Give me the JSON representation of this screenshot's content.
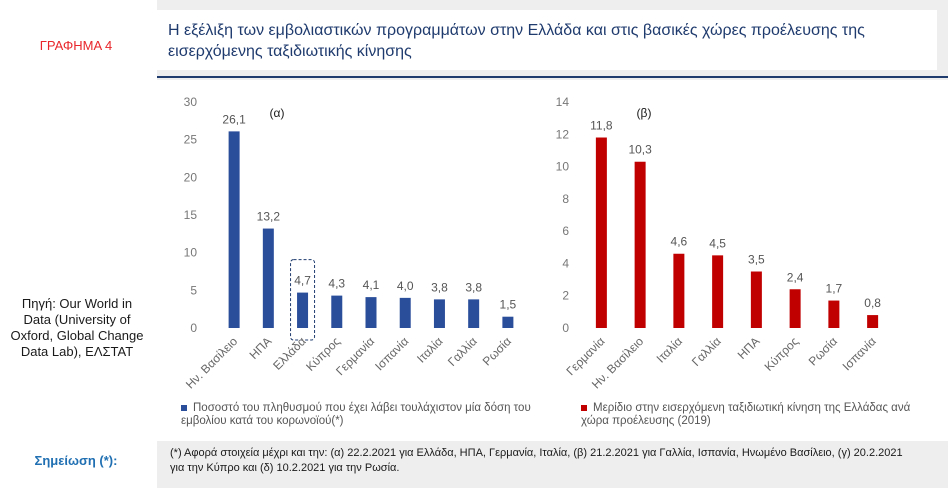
{
  "figure_label": "ΓΡΑΦΗΜΑ 4",
  "title": "Η εξέλιξη των εμβολιαστικών προγραμμάτων στην Ελλάδα και στις βασικές χώρες προέλευσης της εισερχόμενης ταξιδιωτικής κίνησης",
  "source": "Πηγή: Our World in Data (University of Oxford, Global Change Data Lab), ΕΛΣΤΑΤ",
  "note_label": "Σημείωση (*):",
  "note_text": "(*) Αφορά στοιχεία μέχρι και την: (α) 22.2.2021 για Ελλάδα, ΗΠΑ, Γερμανία, Ιταλία, (β) 21.2.2021 για Γαλλία, Ισπανία, Ηνωμένο Βασίλειο, (γ) 20.2.2021 για την Κύπρο και (δ) 10.2.2021 για την Ρωσία.",
  "colors": {
    "blue": "#2b4e9b",
    "red": "#c00000",
    "title": "#1f3b6e",
    "label": "#e8262b"
  },
  "chart_data": [
    {
      "type": "bar",
      "panel_label": "(α)",
      "categories": [
        "Ην. Βασίλειο",
        "ΗΠΑ",
        "Ελλάδα",
        "Κύπρος",
        "Γερμανία",
        "Ισπανία",
        "Ιταλία",
        "Γαλλία",
        "Ρωσία"
      ],
      "series": [
        {
          "name": "Ποσοστό του πληθυσμού που έχει λάβει τουλάχιστον μία δόση του εμβολίου κατά του κορωνοϊού(*)",
          "values": [
            26.1,
            13.2,
            4.7,
            4.3,
            4.1,
            4.0,
            3.8,
            3.8,
            1.5
          ]
        }
      ],
      "data_labels": [
        "26,1",
        "13,2",
        "4,7",
        "4,3",
        "4,1",
        "4,0",
        "3,8",
        "3,8",
        "1,5"
      ],
      "ylim": [
        0,
        30
      ],
      "yticks": [
        0,
        5,
        10,
        15,
        20,
        25,
        30
      ],
      "highlight": "Ελλάδα",
      "color": "#2b4e9b"
    },
    {
      "type": "bar",
      "panel_label": "(β)",
      "categories": [
        "Γερμανία",
        "Ην. Βασίλειο",
        "Ιταλία",
        "Γαλλία",
        "ΗΠΑ",
        "Κύπρος",
        "Ρωσία",
        "Ισπανία"
      ],
      "series": [
        {
          "name": "Μερίδιο στην εισερχόμενη ταξιδιωτική κίνηση της Ελλάδας ανά χώρα προέλευσης (2019)",
          "values": [
            11.8,
            10.3,
            4.6,
            4.5,
            3.5,
            2.4,
            1.7,
            0.8
          ]
        }
      ],
      "data_labels": [
        "11,8",
        "10,3",
        "4,6",
        "4,5",
        "3,5",
        "2,4",
        "1,7",
        "0,8"
      ],
      "ylim": [
        0,
        14
      ],
      "yticks": [
        0,
        2,
        4,
        6,
        8,
        10,
        12,
        14
      ],
      "color": "#c00000"
    }
  ]
}
